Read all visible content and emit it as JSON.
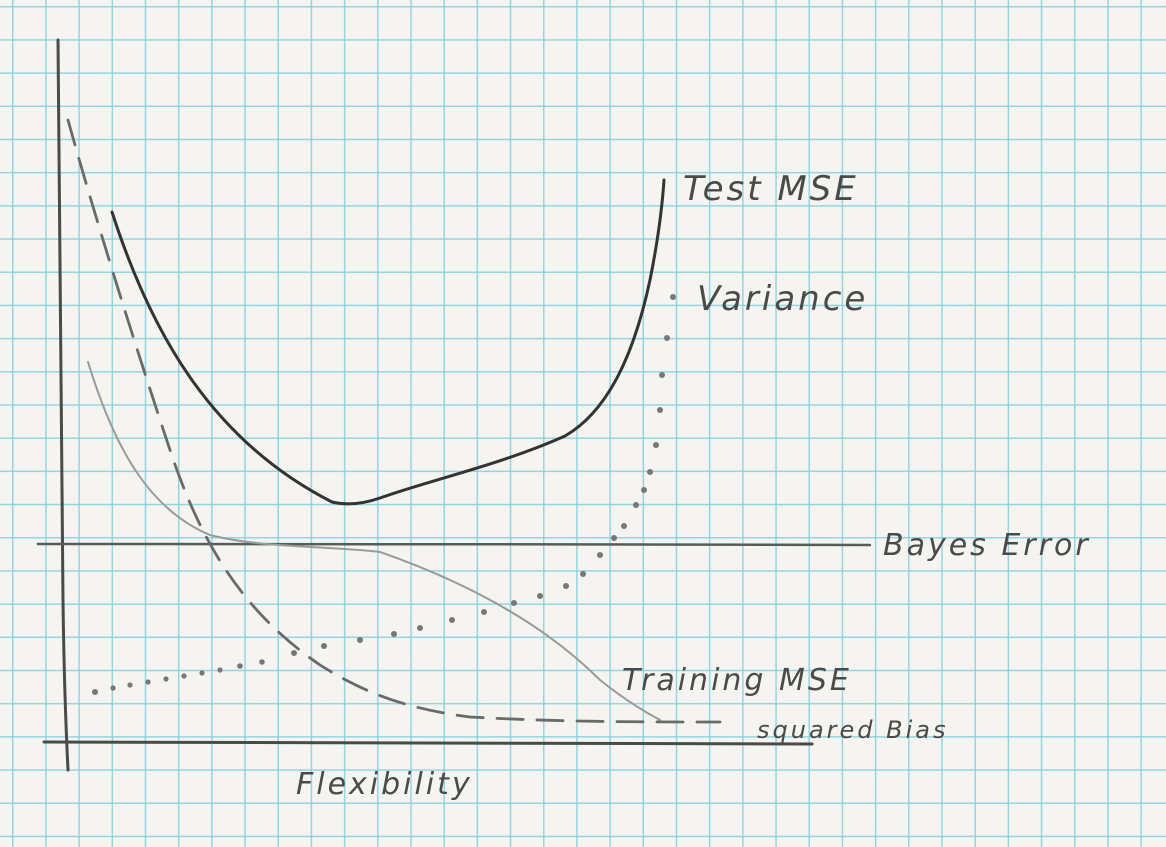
{
  "diagram": {
    "labels": {
      "test_mse": "Test MSE",
      "variance": "Variance",
      "bayes_error": "Bayes Error",
      "training_mse": "Training MSE",
      "squared_bias": "squared Bias",
      "x_axis": "Flexibility"
    },
    "colors": {
      "paper": "#f5f4ef",
      "grid": "#78cdd7",
      "pencil_dark": "#3a3a3a",
      "pencil_light": "#9a9a9a"
    }
  }
}
